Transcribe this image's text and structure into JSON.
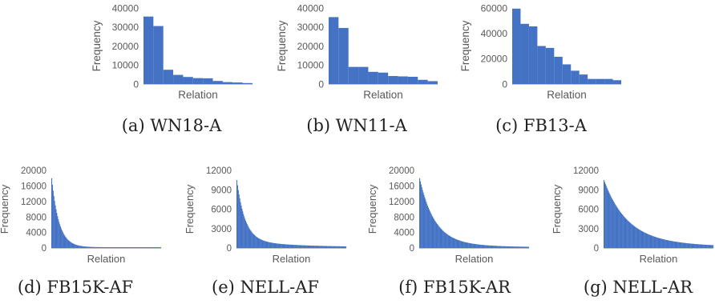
{
  "figure": {
    "bar_color": "#4472c4",
    "axis_color": "#bfbfbf",
    "text_color": "#595959"
  },
  "chart_data": [
    {
      "type": "bar",
      "caption": "(a) WN18-A",
      "xlabel": "Relation",
      "ylabel": "Frequency",
      "ylim": [
        0,
        40000
      ],
      "yticks": [
        0,
        10000,
        20000,
        30000,
        40000
      ],
      "grid": false,
      "values": [
        35500,
        30500,
        7500,
        4800,
        3700,
        3100,
        3000,
        1600,
        1000,
        800,
        500
      ]
    },
    {
      "type": "bar",
      "caption": "(b) WN11-A",
      "xlabel": "Relation",
      "ylabel": "Frequency",
      "ylim": [
        0,
        40000
      ],
      "yticks": [
        0,
        10000,
        20000,
        30000,
        40000
      ],
      "grid": false,
      "values": [
        35200,
        29500,
        9000,
        9000,
        6400,
        6000,
        4200,
        4000,
        3800,
        2200,
        1500
      ]
    },
    {
      "type": "bar",
      "caption": "(c) FB13-A",
      "xlabel": "Relation",
      "ylabel": "Frequency",
      "ylim": [
        0,
        60000
      ],
      "yticks": [
        0,
        20000,
        40000,
        60000
      ],
      "grid": false,
      "values": [
        59500,
        47500,
        45500,
        30000,
        28500,
        21500,
        15500,
        10500,
        7500,
        4000,
        4000,
        4000,
        3000
      ]
    },
    {
      "type": "bar",
      "caption": "(d) FB15K-AF",
      "xlabel": "Relation",
      "ylabel": "Frequency",
      "ylim": [
        0,
        20000
      ],
      "yticks": [
        0,
        4000,
        8000,
        12000,
        16000,
        20000
      ],
      "grid": false,
      "distribution": {
        "bars": 150,
        "max": 18000,
        "floor": 200,
        "decay": 0.1,
        "tail": 0
      }
    },
    {
      "type": "bar",
      "caption": "(e) NELL-AF",
      "xlabel": "Relation",
      "ylabel": "Frequency",
      "ylim": [
        0,
        12000
      ],
      "yticks": [
        0,
        3000,
        6000,
        9000,
        12000
      ],
      "grid": false,
      "distribution": {
        "bars": 150,
        "max": 10500,
        "floor": 150,
        "decay": 0.09,
        "tail": 1200
      }
    },
    {
      "type": "bar",
      "caption": "(f) FB15K-AR",
      "xlabel": "Relation",
      "ylabel": "Frequency",
      "ylim": [
        0,
        20000
      ],
      "yticks": [
        0,
        4000,
        8000,
        12000,
        16000,
        20000
      ],
      "grid": false,
      "distribution": {
        "bars": 150,
        "max": 18000,
        "floor": 150,
        "decay": 0.05,
        "tail": 1800
      }
    },
    {
      "type": "bar",
      "caption": "(g) NELL-AR",
      "xlabel": "Relation",
      "ylabel": "Frequency",
      "ylim": [
        0,
        12000
      ],
      "yticks": [
        0,
        3000,
        6000,
        9000,
        12000
      ],
      "grid": false,
      "distribution": {
        "bars": 150,
        "max": 10500,
        "floor": 150,
        "decay": 0.035,
        "tail": 3000
      }
    }
  ]
}
